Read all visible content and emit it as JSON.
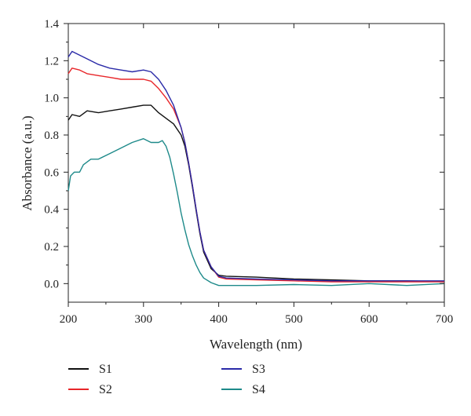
{
  "chart_data": {
    "type": "line",
    "xlabel": "Wavelength (nm)",
    "ylabel": "Absorbance (a.u.)",
    "xlim": [
      200,
      700
    ],
    "ylim": [
      -0.1,
      1.4
    ],
    "x_ticks": [
      200,
      300,
      400,
      500,
      600,
      700
    ],
    "x_tick_labels": [
      "200",
      "300",
      "400",
      "500",
      "600",
      "700"
    ],
    "y_ticks": [
      0.0,
      0.2,
      0.4,
      0.6,
      0.8,
      1.0,
      1.2,
      1.4
    ],
    "y_tick_labels": [
      "0.0",
      "0.2",
      "0.4",
      "0.6",
      "0.8",
      "1.0",
      "1.2",
      "1.4"
    ],
    "grid": false,
    "legend_position": "bottom",
    "series": [
      {
        "name": "S1",
        "color": "#111111",
        "x": [
          200,
          205,
          215,
          225,
          240,
          255,
          270,
          285,
          300,
          310,
          320,
          330,
          340,
          350,
          355,
          360,
          365,
          370,
          375,
          380,
          390,
          400,
          410,
          450,
          500,
          550,
          600,
          650,
          700
        ],
        "y": [
          0.88,
          0.91,
          0.9,
          0.93,
          0.92,
          0.93,
          0.94,
          0.95,
          0.96,
          0.96,
          0.92,
          0.89,
          0.86,
          0.8,
          0.74,
          0.64,
          0.52,
          0.39,
          0.27,
          0.17,
          0.08,
          0.045,
          0.04,
          0.035,
          0.025,
          0.02,
          0.015,
          0.015,
          0.01
        ]
      },
      {
        "name": "S2",
        "color": "#e8262a",
        "x": [
          200,
          205,
          215,
          225,
          240,
          255,
          270,
          285,
          300,
          310,
          320,
          330,
          340,
          350,
          355,
          360,
          365,
          370,
          375,
          380,
          390,
          400,
          410,
          450,
          500,
          550,
          600,
          650,
          700
        ],
        "y": [
          1.13,
          1.16,
          1.15,
          1.13,
          1.12,
          1.11,
          1.1,
          1.1,
          1.1,
          1.09,
          1.05,
          1.0,
          0.94,
          0.84,
          0.76,
          0.65,
          0.53,
          0.4,
          0.28,
          0.18,
          0.09,
          0.035,
          0.025,
          0.02,
          0.015,
          0.01,
          0.01,
          0.01,
          0.01
        ]
      },
      {
        "name": "S3",
        "color": "#2a2aa8",
        "x": [
          200,
          205,
          215,
          225,
          240,
          255,
          270,
          285,
          300,
          310,
          320,
          330,
          340,
          350,
          355,
          360,
          365,
          370,
          375,
          380,
          390,
          400,
          410,
          450,
          500,
          550,
          600,
          650,
          700
        ],
        "y": [
          1.22,
          1.25,
          1.23,
          1.21,
          1.18,
          1.16,
          1.15,
          1.14,
          1.15,
          1.14,
          1.1,
          1.04,
          0.96,
          0.84,
          0.76,
          0.65,
          0.53,
          0.4,
          0.28,
          0.18,
          0.09,
          0.04,
          0.03,
          0.025,
          0.02,
          0.015,
          0.015,
          0.015,
          0.015
        ]
      },
      {
        "name": "S4",
        "color": "#1e8a8a",
        "x": [
          200,
          203,
          208,
          215,
          220,
          230,
          240,
          255,
          270,
          285,
          300,
          305,
          310,
          320,
          325,
          330,
          335,
          340,
          345,
          350,
          355,
          360,
          365,
          370,
          375,
          380,
          390,
          400,
          420,
          450,
          500,
          550,
          600,
          650,
          700
        ],
        "y": [
          0.5,
          0.58,
          0.6,
          0.6,
          0.64,
          0.67,
          0.67,
          0.7,
          0.73,
          0.76,
          0.78,
          0.77,
          0.76,
          0.76,
          0.77,
          0.74,
          0.68,
          0.59,
          0.49,
          0.38,
          0.29,
          0.21,
          0.15,
          0.1,
          0.06,
          0.03,
          0.005,
          -0.01,
          -0.01,
          -0.01,
          -0.005,
          -0.01,
          0.0,
          -0.01,
          0.0
        ]
      }
    ]
  }
}
